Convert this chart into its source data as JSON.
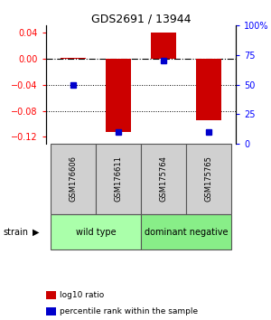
{
  "title": "GDS2691 / 13944",
  "samples": [
    "GSM176606",
    "GSM176611",
    "GSM175764",
    "GSM175765"
  ],
  "log10_ratio": [
    0.001,
    -0.113,
    0.04,
    -0.095
  ],
  "percentile_rank_pct": [
    50,
    10,
    70,
    10
  ],
  "ylim_left": [
    -0.13,
    0.05
  ],
  "ylim_right": [
    0,
    100
  ],
  "yticks_left": [
    -0.12,
    -0.08,
    -0.04,
    0,
    0.04
  ],
  "yticks_right": [
    0,
    25,
    50,
    75,
    100
  ],
  "hlines": [
    -0.04,
    -0.08
  ],
  "zero_line": 0,
  "bar_color": "#cc0000",
  "dot_color": "#0000cc",
  "groups": [
    {
      "label": "wild type",
      "samples": [
        0,
        1
      ],
      "color": "#aaffaa"
    },
    {
      "label": "dominant negative",
      "samples": [
        2,
        3
      ],
      "color": "#88ee88"
    }
  ],
  "strain_label": "strain",
  "legend_red": "log10 ratio",
  "legend_blue": "percentile rank within the sample",
  "sample_box_color": "#d0d0d0",
  "background_color": "#ffffff"
}
